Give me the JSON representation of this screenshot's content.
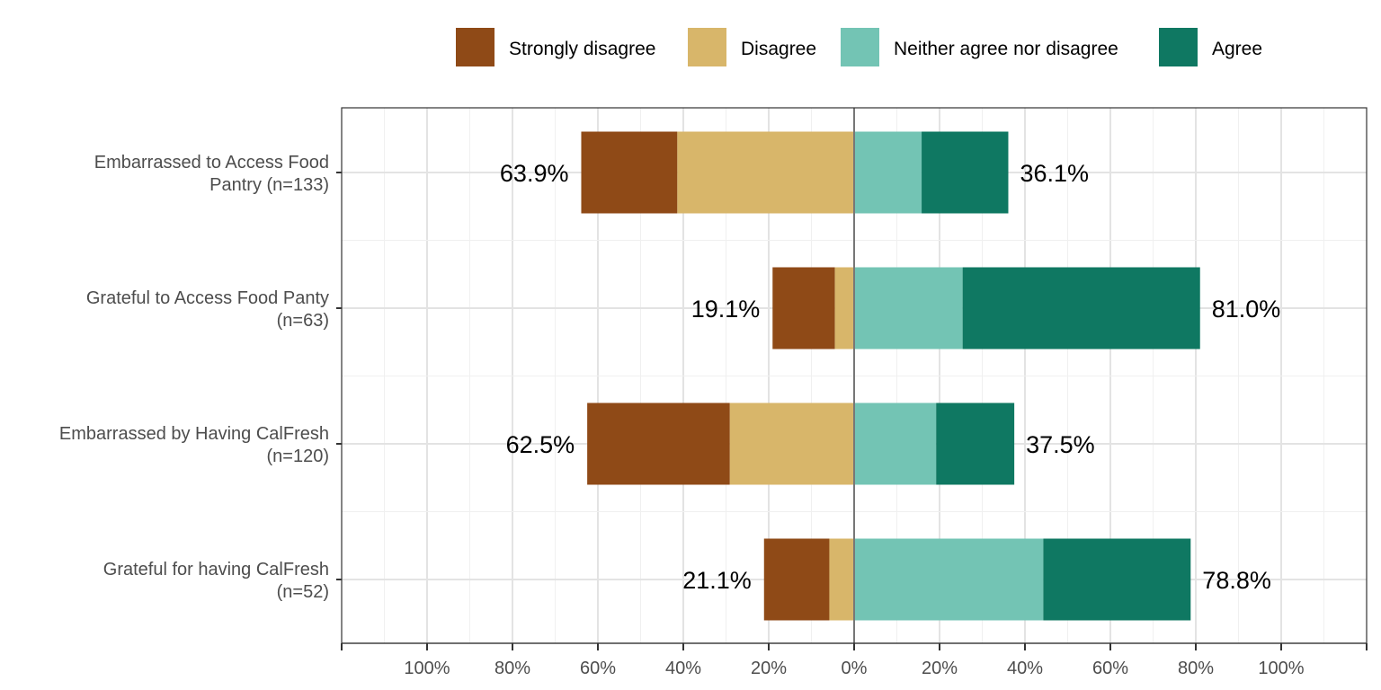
{
  "chart_data": {
    "type": "bar",
    "subtype": "diverging-stacked-horizontal",
    "x_range": [
      -1.2,
      1.2
    ],
    "x_ticks": [
      -1.0,
      -0.8,
      -0.6,
      -0.4,
      -0.2,
      0,
      0.2,
      0.4,
      0.6,
      0.8,
      1.0
    ],
    "x_tick_labels": [
      "100%",
      "80%",
      "60%",
      "40%",
      "20%",
      "0%",
      "20%",
      "40%",
      "60%",
      "80%",
      "100%"
    ],
    "legend": {
      "position": "top",
      "entries": [
        {
          "name": "Strongly disagree",
          "color": "#8F4A17"
        },
        {
          "name": "Disagree",
          "color": "#D8B66A"
        },
        {
          "name": "Neither agree nor disagree",
          "color": "#73C4B4"
        },
        {
          "name": "Agree",
          "color": "#0F7862"
        }
      ]
    },
    "categories": [
      {
        "label_lines": [
          "Embarrassed to Access Food",
          "Pantry (n=133)"
        ],
        "strongly_disagree": 22.5,
        "disagree": 41.4,
        "neither": 15.8,
        "agree": 20.3,
        "left_label": "63.9%",
        "right_label": "36.1%"
      },
      {
        "label_lines": [
          "Grateful to Access Food Panty",
          "(n=63)"
        ],
        "strongly_disagree": 14.6,
        "disagree": 4.5,
        "neither": 25.4,
        "agree": 55.6,
        "left_label": "19.1%",
        "right_label": "81.0%"
      },
      {
        "label_lines": [
          "Embarrassed by Having CalFresh",
          "(n=120)"
        ],
        "strongly_disagree": 33.4,
        "disagree": 29.1,
        "neither": 19.2,
        "agree": 18.3,
        "left_label": "62.5%",
        "right_label": "37.5%"
      },
      {
        "label_lines": [
          "Grateful for having CalFresh",
          "(n=52)"
        ],
        "strongly_disagree": 15.3,
        "disagree": 5.8,
        "neither": 44.3,
        "agree": 34.5,
        "left_label": "21.1%",
        "right_label": "78.8%"
      }
    ]
  }
}
